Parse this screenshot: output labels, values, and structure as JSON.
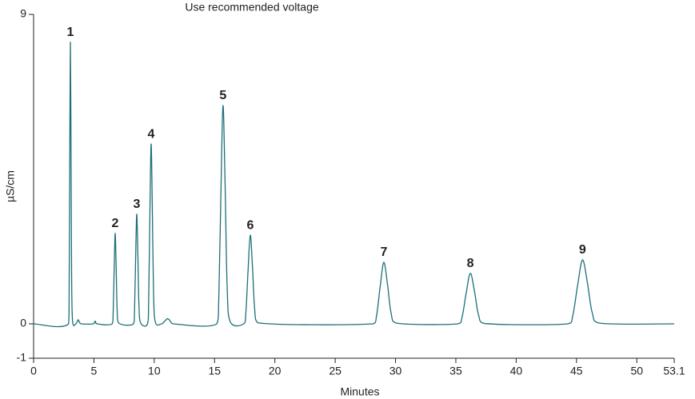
{
  "chart_data": {
    "type": "line",
    "title": "Use recommended voltage",
    "x_label": "Minutes",
    "y_label": "µS/cm",
    "xlim": [
      0,
      53.1
    ],
    "xticks": [
      0,
      5,
      10,
      15,
      20,
      25,
      30,
      35,
      40,
      45,
      50,
      53.1
    ],
    "ylim": [
      -1,
      9
    ],
    "yticks": [
      -1,
      0,
      9
    ],
    "series": [
      {
        "color": "#1d6f78",
        "x": [
          0,
          2.9,
          2.95,
          3.0,
          3.05,
          3.1,
          3.15,
          3.23,
          3.5,
          3.62,
          3.7,
          3.8,
          3.95,
          4.95,
          5.1,
          5.25,
          6.52,
          6.6,
          6.68,
          6.76,
          6.84,
          6.92,
          7.04,
          8.28,
          8.37,
          8.46,
          8.55,
          8.64,
          8.73,
          8.87,
          9.44,
          9.54,
          9.64,
          9.74,
          9.84,
          9.94,
          10.09,
          10.6,
          10.9,
          11.1,
          11.3,
          11.6,
          15.19,
          15.36,
          15.53,
          15.7,
          15.87,
          16.04,
          16.3,
          17.42,
          17.6,
          17.78,
          17.96,
          18.14,
          18.32,
          18.59,
          28.13,
          28.43,
          28.73,
          29.03,
          29.33,
          29.63,
          30.08,
          35.18,
          35.52,
          35.86,
          36.2,
          36.54,
          36.88,
          37.39,
          44.3,
          44.7,
          45.1,
          45.5,
          45.9,
          46.3,
          46.9,
          53.1
        ],
        "values": [
          0,
          0,
          1.11,
          5.0,
          8.19,
          5.32,
          1.47,
          0.08,
          0,
          0.07,
          0.12,
          0.05,
          0,
          0,
          0.08,
          0,
          0,
          0.36,
          1.6,
          2.63,
          1.71,
          0.47,
          0.03,
          0,
          0.43,
          1.95,
          3.19,
          2.07,
          0.57,
          0.03,
          0,
          0.71,
          3.19,
          5.23,
          3.4,
          0.94,
          0.05,
          0,
          0.09,
          0.15,
          0.1,
          0,
          0,
          0.86,
          3.87,
          6.35,
          4.13,
          1.14,
          0.06,
          0,
          0.35,
          1.57,
          2.58,
          1.68,
          0.46,
          0.03,
          0,
          0.24,
          1.09,
          1.79,
          1.16,
          0.32,
          0.02,
          0,
          0.2,
          0.9,
          1.47,
          0.96,
          0.26,
          0.01,
          0,
          0.25,
          1.13,
          1.86,
          1.21,
          0.33,
          0.02,
          0
        ],
        "point_labels": [
          null,
          null,
          null,
          null,
          "1",
          null,
          null,
          null,
          null,
          null,
          null,
          null,
          null,
          null,
          null,
          null,
          null,
          null,
          null,
          "2",
          null,
          null,
          null,
          null,
          null,
          null,
          "3",
          null,
          null,
          null,
          null,
          null,
          null,
          "4",
          null,
          null,
          null,
          null,
          null,
          null,
          null,
          null,
          null,
          null,
          null,
          "5",
          null,
          null,
          null,
          null,
          null,
          null,
          "6",
          null,
          null,
          null,
          null,
          null,
          null,
          "7",
          null,
          null,
          null,
          null,
          null,
          null,
          "8",
          null,
          null,
          null,
          null,
          null,
          null,
          "9",
          null,
          null,
          null,
          null
        ]
      }
    ]
  }
}
